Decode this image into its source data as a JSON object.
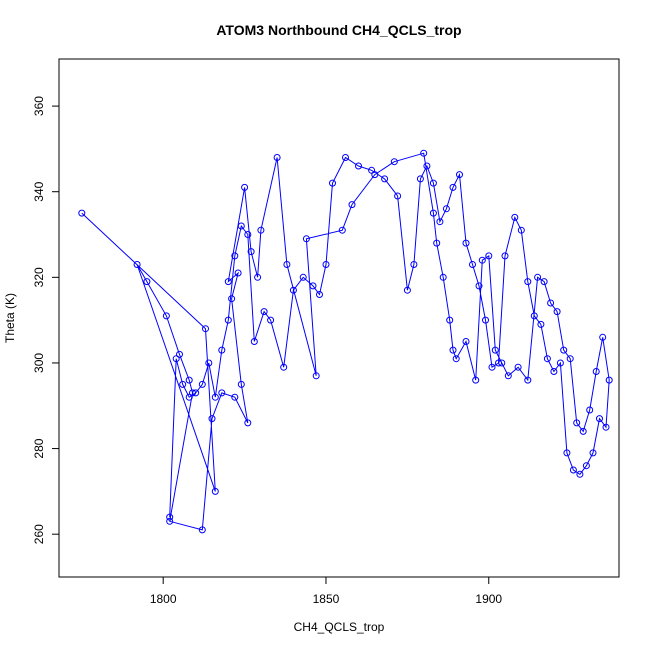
{
  "chart_data": {
    "type": "line",
    "title": "ATOM3 Northbound CH4_QCLS_trop",
    "xlabel": "CH4_QCLS_trop",
    "ylabel": "Theta (K)",
    "xlim": [
      1768,
      1940
    ],
    "ylim": [
      250,
      371
    ],
    "xticks": [
      1800,
      1850,
      1900
    ],
    "yticks": [
      260,
      280,
      300,
      320,
      340,
      360
    ],
    "grid": false,
    "legend": "none",
    "series_color": "#0000ff",
    "markers": "open-circle",
    "series": [
      {
        "x": [
          1775,
          1813,
          1816,
          1792,
          1795,
          1801,
          1805,
          1808,
          1809,
          1802,
          1812,
          1815,
          1818,
          1822,
          1826,
          1824,
          1821,
          1823,
          1820,
          1825,
          1827,
          1829,
          1830,
          1835,
          1838,
          1847,
          1844,
          1855,
          1858,
          1865,
          1871,
          1880,
          1883,
          1884,
          1886,
          1888,
          1889,
          1890,
          1893,
          1896,
          1898,
          1900,
          1902,
          1904,
          1906,
          1909,
          1912,
          1915,
          1917,
          1919,
          1921,
          1923,
          1925,
          1927,
          1929,
          1931,
          1933,
          1935,
          1937,
          1936,
          1934,
          1932,
          1930,
          1928,
          1926,
          1924,
          1922,
          1920,
          1918,
          1916,
          1914,
          1912,
          1910,
          1908,
          1905,
          1903,
          1901,
          1899,
          1897,
          1895,
          1893,
          1891,
          1889,
          1887,
          1885,
          1883,
          1881,
          1879,
          1877,
          1875,
          1872,
          1868,
          1864,
          1860,
          1856,
          1852,
          1850,
          1848,
          1846,
          1843,
          1840,
          1837,
          1833,
          1831,
          1828,
          1826,
          1824,
          1822,
          1820,
          1818,
          1816,
          1814,
          1812,
          1810,
          1808,
          1806,
          1804,
          1802
        ],
        "y": [
          335,
          308,
          270,
          323,
          319,
          311,
          302,
          296,
          293,
          263,
          261,
          287,
          293,
          292,
          286,
          295,
          315,
          321,
          319,
          341,
          326,
          320,
          331,
          348,
          323,
          297,
          329,
          331,
          337,
          344,
          347,
          349,
          335,
          328,
          320,
          310,
          303,
          301,
          305,
          296,
          324,
          325,
          303,
          300,
          297,
          299,
          296,
          320,
          319,
          314,
          312,
          303,
          301,
          286,
          284,
          289,
          298,
          306,
          296,
          285,
          287,
          279,
          276,
          274,
          275,
          279,
          300,
          298,
          301,
          309,
          311,
          319,
          331,
          334,
          325,
          300,
          299,
          310,
          318,
          323,
          328,
          344,
          341,
          336,
          333,
          342,
          346,
          343,
          323,
          317,
          339,
          343,
          345,
          346,
          348,
          342,
          323,
          316,
          318,
          320,
          317,
          299,
          310,
          312,
          305,
          330,
          332,
          325,
          310,
          303,
          292,
          300,
          295,
          293,
          292,
          295,
          301,
          264
        ]
      }
    ]
  }
}
